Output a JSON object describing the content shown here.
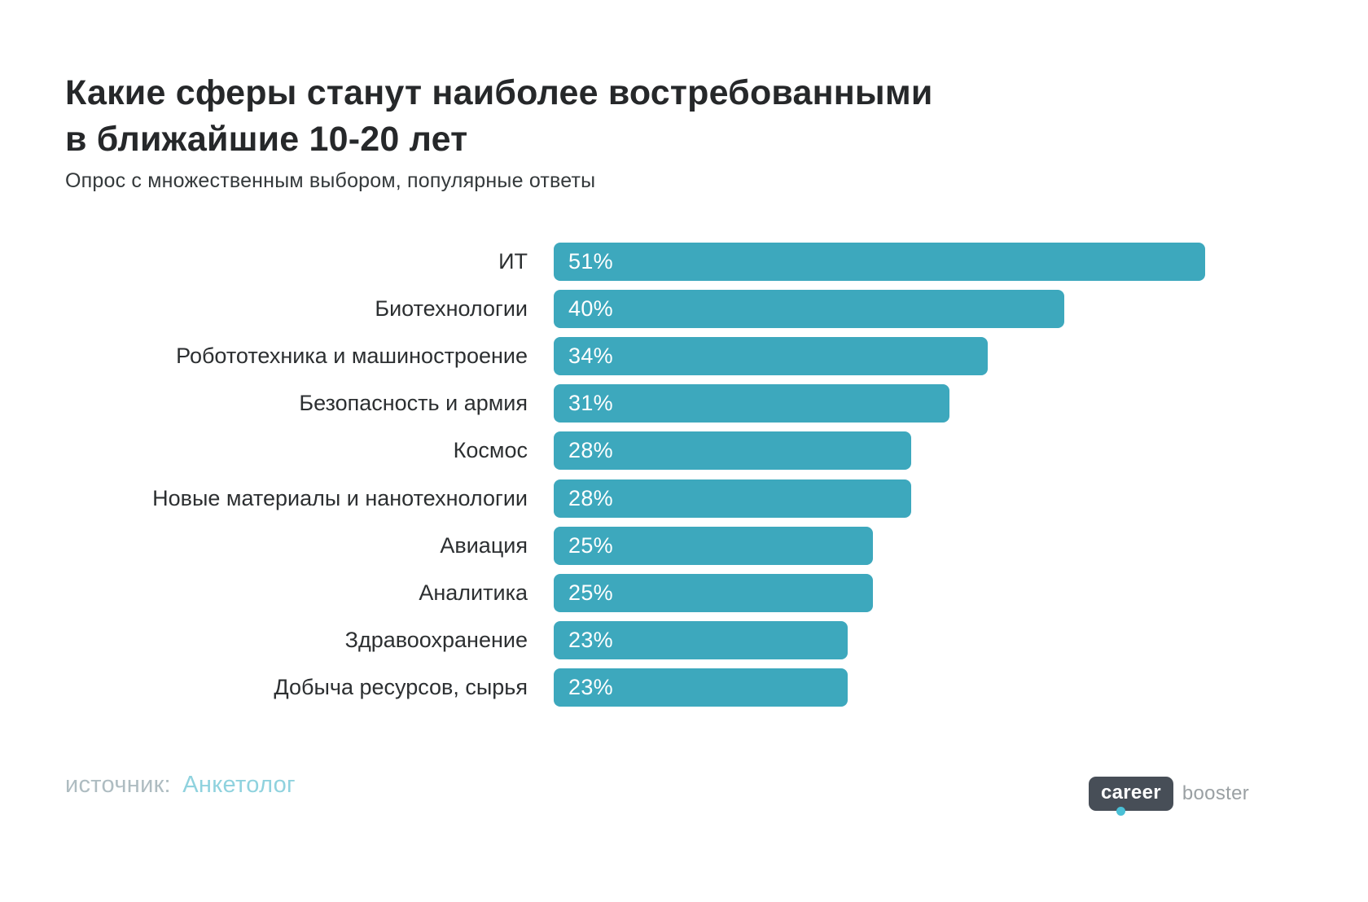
{
  "page": {
    "title_line1": "Какие сферы станут наиболее востребованными",
    "title_line2": "в ближайшие 10-20 лет",
    "subtitle": "Опрос с множественным выбором, популярные ответы"
  },
  "chart_data": {
    "type": "bar",
    "orientation": "horizontal",
    "title": "Какие сферы станут наиболее востребованными в ближайшие 10-20 лет",
    "subtitle": "Опрос с множественным выбором, популярные ответы",
    "categories": [
      "ИТ",
      "Биотехнологии",
      "Робототехника и машиностроение",
      "Безопасность и армия",
      "Космос",
      "Новые материалы и нанотехнологии",
      "Авиация",
      "Аналитика",
      "Здравоохранение",
      "Добыча ресурсов, сырья"
    ],
    "values": [
      51,
      40,
      34,
      31,
      28,
      28,
      25,
      25,
      23,
      23
    ],
    "value_labels": [
      "51%",
      "40%",
      "34%",
      "31%",
      "28%",
      "28%",
      "25%",
      "25%",
      "23%",
      "23%"
    ],
    "xlim": [
      0,
      51
    ],
    "bar_color": "#3da8bd",
    "grid": false,
    "legend": false
  },
  "footer": {
    "source_label": "источник:",
    "source_name": "Анкетолог",
    "logo_primary": "career",
    "logo_secondary": "booster"
  },
  "colors": {
    "bar": "#3da8bd",
    "accent_teal": "#8fd2de",
    "title_text": "#26282a",
    "logo_pill": "#474e57"
  }
}
